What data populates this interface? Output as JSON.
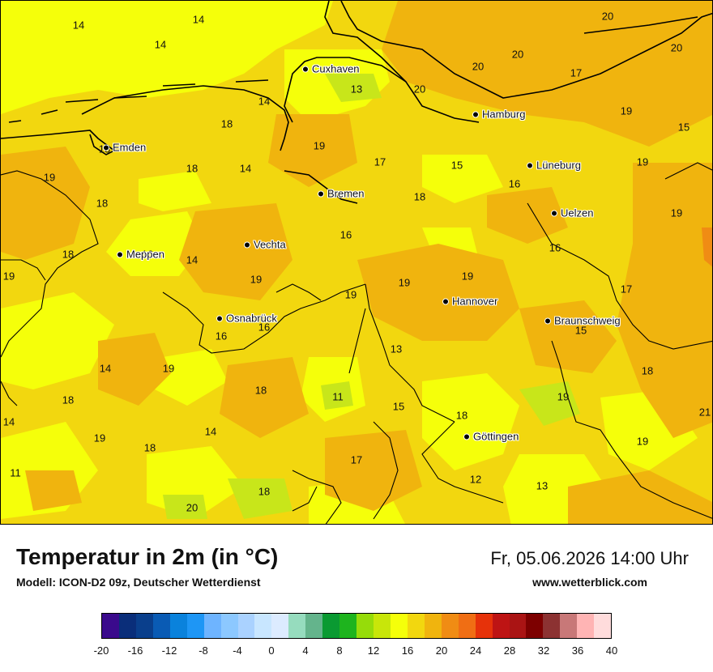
{
  "map": {
    "cities": [
      {
        "name": "Cuxhaven"
      },
      {
        "name": "Hamburg"
      },
      {
        "name": "Emden"
      },
      {
        "name": "Lüneburg"
      },
      {
        "name": "Bremen"
      },
      {
        "name": "Uelzen"
      },
      {
        "name": "Vechta"
      },
      {
        "name": "Meppen"
      },
      {
        "name": "Hannover"
      },
      {
        "name": "Osnabrück"
      },
      {
        "name": "Braunschweig"
      },
      {
        "name": "Göttingen"
      }
    ],
    "values": [
      "14",
      "14",
      "14",
      "20",
      "20",
      "20",
      "20",
      "17",
      "13",
      "14",
      "20",
      "19",
      "18",
      "15",
      "13",
      "19",
      "17",
      "15",
      "19",
      "19",
      "18",
      "14",
      "18",
      "16",
      "19",
      "18",
      "16",
      "16",
      "16",
      "18",
      "14",
      "19",
      "19",
      "19",
      "19",
      "19",
      "17",
      "16",
      "16",
      "15",
      "14",
      "19",
      "13",
      "18",
      "18",
      "11",
      "15",
      "19",
      "18",
      "21",
      "14",
      "18",
      "14",
      "19",
      "19",
      "18",
      "17",
      "11",
      "12",
      "13",
      "18",
      "20"
    ],
    "colors": {
      "land_base": "#f2d70f",
      "light": "#f5ff0a",
      "warm": "#f0b40e",
      "green": "#c8e61a"
    }
  },
  "footer": {
    "title": "Temperatur in 2m (in °C)",
    "subtitle": "Modell: ICON-D2 09z, Deutscher Wetterdienst",
    "datetime": "Fr, 05.06.2026 14:00 Uhr",
    "website": "www.wetterblick.com"
  },
  "legend": {
    "colors": [
      "#3a0a8c",
      "#0a2e7a",
      "#0a3f8c",
      "#0a5bb4",
      "#0a82dc",
      "#1e96f5",
      "#6eb4ff",
      "#8cc8ff",
      "#aad2ff",
      "#c8e6ff",
      "#dcebff",
      "#96dcbe",
      "#64b48c",
      "#0a9a32",
      "#1eb41e",
      "#96dc0a",
      "#c8e60a",
      "#f5ff0a",
      "#f2d70f",
      "#f0b40e",
      "#f08c14",
      "#f06e14",
      "#e6320a",
      "#be1414",
      "#aa1414",
      "#7d0000",
      "#8c3232",
      "#c87878",
      "#ffb4b4",
      "#ffdcdc"
    ],
    "ticks": [
      "-20",
      "-16",
      "-12",
      "-8",
      "-4",
      "0",
      "4",
      "8",
      "12",
      "16",
      "20",
      "24",
      "28",
      "32",
      "36",
      "40"
    ]
  }
}
